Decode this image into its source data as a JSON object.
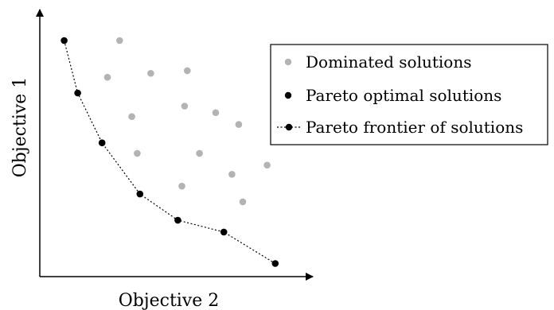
{
  "chart_data": {
    "type": "scatter",
    "xlabel": "Objective 2",
    "ylabel": "Objective 1",
    "grid": false,
    "legend_placement": "right",
    "legend": [
      {
        "label": "Dominated solutions",
        "marker": "gray-dot"
      },
      {
        "label": "Pareto optimal solutions",
        "marker": "black-dot"
      },
      {
        "label": "Pareto frontier of solutions",
        "marker": "dotted-line-with-black-dot"
      }
    ],
    "colors": {
      "dominated": "#b3b3b3",
      "pareto": "#000000"
    },
    "xlim": [
      0,
      10
    ],
    "ylim": [
      0,
      10
    ],
    "series": [
      {
        "name": "Dominated solutions",
        "points": [
          [
            2.95,
            9.0
          ],
          [
            2.5,
            7.6
          ],
          [
            4.1,
            7.75
          ],
          [
            5.45,
            7.85
          ],
          [
            3.4,
            6.1
          ],
          [
            5.35,
            6.5
          ],
          [
            6.5,
            6.25
          ],
          [
            7.35,
            5.8
          ],
          [
            3.6,
            4.7
          ],
          [
            5.9,
            4.7
          ],
          [
            7.1,
            3.9
          ],
          [
            8.4,
            4.25
          ],
          [
            5.25,
            3.45
          ],
          [
            7.5,
            2.85
          ]
        ]
      },
      {
        "name": "Pareto optimal solutions",
        "points": [
          [
            0.9,
            9.0
          ],
          [
            1.4,
            7.0
          ],
          [
            2.3,
            5.1
          ],
          [
            3.7,
            3.15
          ],
          [
            5.1,
            2.15
          ],
          [
            6.8,
            1.7
          ],
          [
            8.7,
            0.5
          ]
        ]
      }
    ]
  }
}
